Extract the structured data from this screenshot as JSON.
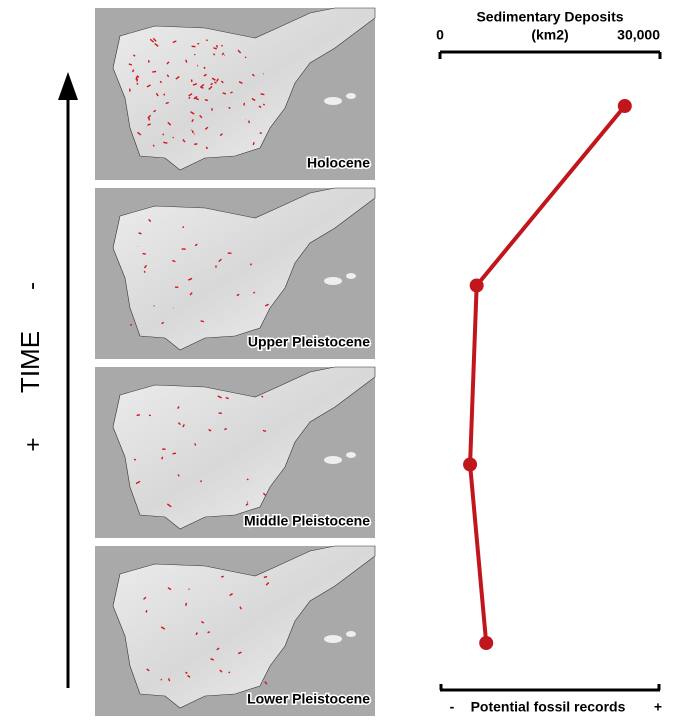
{
  "chart_data": {
    "type": "line",
    "categories": [
      "Holocene",
      "Upper Pleistocene",
      "Middle Pleistocene",
      "Lower Pleistocene"
    ],
    "values": [
      25200,
      5000,
      4100,
      6300
    ],
    "color": "#c0161c",
    "x_label": [
      "Sedimentary Deposits",
      "(km2)"
    ],
    "xlim": [
      0,
      30000
    ],
    "xticks": [
      0,
      {
        "value": 30000,
        "label": "30,000"
      }
    ],
    "bottom_axis": {
      "low": "-",
      "label": "Potential fossil records",
      "high": "+"
    },
    "time_axis": {
      "label": "TIME",
      "low": "+",
      "high": "-"
    }
  }
}
